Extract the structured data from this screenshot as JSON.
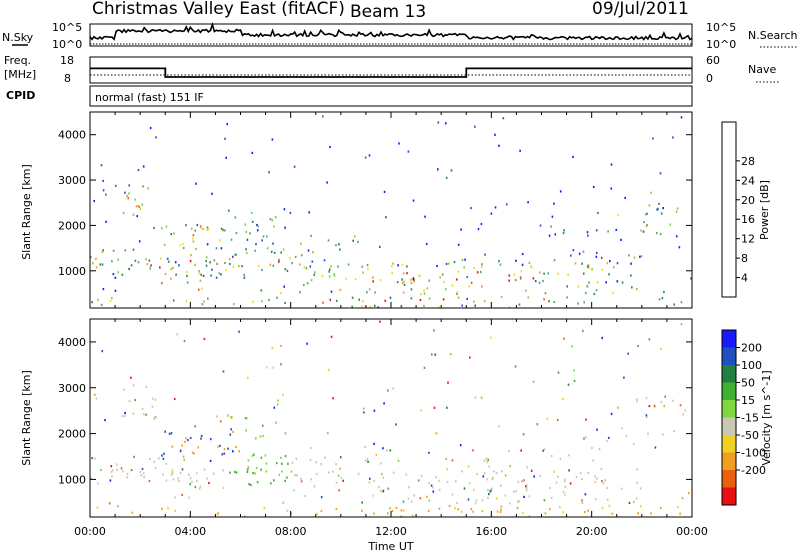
{
  "header": {
    "title": "Christmas Valley East (fitACF)",
    "beam": "Beam 13",
    "date": "09/Jul/2011"
  },
  "noise_panel": {
    "left_label": "N.Sky",
    "right_label": "N.Search",
    "left_ticks": [
      "10^5",
      "10^0"
    ],
    "right_ticks": [
      "10^5",
      "10^0"
    ]
  },
  "freq_panel": {
    "left_label_line1": "Freq.",
    "left_label_line2": "[MHz]",
    "right_label": "Nave",
    "left_ticks": [
      "18",
      "8"
    ],
    "right_ticks": [
      "60",
      "0"
    ]
  },
  "cpid": {
    "label": "CPID",
    "value": "normal (fast) 151 IF"
  },
  "x_axis": {
    "label": "Time UT",
    "ticks": [
      "00:00",
      "04:00",
      "08:00",
      "12:00",
      "16:00",
      "20:00",
      "00:00"
    ]
  },
  "colors": {
    "power": [
      "#1a1aff",
      "#3050c8",
      "#2a8a5a",
      "#50a878",
      "#80d040",
      "#e8e020",
      "#f0a020",
      "#e86018",
      "#e81010"
    ],
    "velocity": [
      "#1a1aff",
      "#2050c0",
      "#208040",
      "#40b030",
      "#80d840",
      "#c8c8b4",
      "#f0d020",
      "#f0a020",
      "#e86010",
      "#e81010"
    ]
  },
  "chart_data": [
    {
      "type": "line",
      "title": "",
      "series": [
        {
          "name": "N.Sky"
        }
      ],
      "note": "noise level, log scale",
      "ylim_label": [
        "10^0",
        "10^5"
      ],
      "yscale": "log"
    },
    {
      "type": "line",
      "series": [
        {
          "name": "Freq.",
          "x": [
            0,
            3,
            3,
            15,
            15,
            24
          ],
          "values": [
            13.6,
            13.6,
            10.3,
            10.3,
            13.6,
            13.6
          ]
        }
      ],
      "xlim": [
        0,
        24
      ],
      "ylim": [
        8,
        18
      ],
      "ylabel": "Freq. [MHz]"
    },
    {
      "type": "heatmap",
      "ylabel": "Slant Range [km]",
      "xlabel": "Time UT",
      "xlim": [
        0,
        24
      ],
      "ylim": [
        180,
        4500
      ],
      "yticks": [
        1000,
        2000,
        3000,
        4000
      ],
      "colorbar": {
        "label": "Power [dB]",
        "ticks": [
          "4",
          "8",
          "12",
          "16",
          "20",
          "24",
          "28"
        ]
      }
    },
    {
      "type": "heatmap",
      "ylabel": "Slant Range [km]",
      "xlabel": "Time UT",
      "xlim": [
        0,
        24
      ],
      "ylim": [
        180,
        4500
      ],
      "yticks": [
        1000,
        2000,
        3000,
        4000
      ],
      "colorbar": {
        "label": "Velocity [m s^-1]",
        "ticks": [
          "200",
          "100",
          "50",
          "15",
          "-15",
          "-50",
          "-100",
          "-200"
        ]
      }
    }
  ]
}
